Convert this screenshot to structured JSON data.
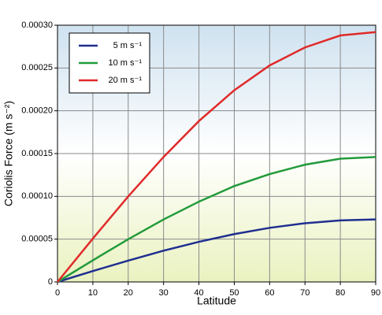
{
  "chart_data": {
    "type": "line",
    "xlabel": "Latitude",
    "ylabel": "Coriolis Force  (m s⁻²)",
    "x": [
      0,
      10,
      20,
      30,
      40,
      50,
      60,
      70,
      80,
      90
    ],
    "series": [
      {
        "name": "5 m s⁻¹",
        "color": "#1f2f8f",
        "values": [
          0,
          1.27e-05,
          2.49e-05,
          3.65e-05,
          4.69e-05,
          5.59e-05,
          6.32e-05,
          6.86e-05,
          7.19e-05,
          7.3e-05
        ]
      },
      {
        "name": "10 m s⁻¹",
        "color": "#229a3a",
        "values": [
          0,
          2.53e-05,
          4.99e-05,
          7.3e-05,
          9.38e-05,
          0.000112,
          0.000126,
          0.000137,
          0.000144,
          0.000146
        ]
      },
      {
        "name": "20 m s⁻¹",
        "color": "#e02a2a",
        "values": [
          0,
          5.07e-05,
          9.99e-05,
          0.000146,
          0.000188,
          0.000224,
          0.000253,
          0.000274,
          0.000288,
          0.000292
        ]
      }
    ],
    "xlim": [
      0,
      90
    ],
    "xticks": [
      0,
      10,
      20,
      30,
      40,
      50,
      60,
      70,
      80,
      90
    ],
    "ylim": [
      0,
      0.0003
    ],
    "yticks": [
      0,
      5e-05,
      {
        "value": 0.0001,
        "label": "0.00010"
      },
      0.00015,
      {
        "value": 0.0002,
        "label": "0.00020"
      },
      0.00025,
      {
        "value": 0.0003,
        "label": "0.00030"
      }
    ],
    "grid": true,
    "legend": "upper left"
  }
}
